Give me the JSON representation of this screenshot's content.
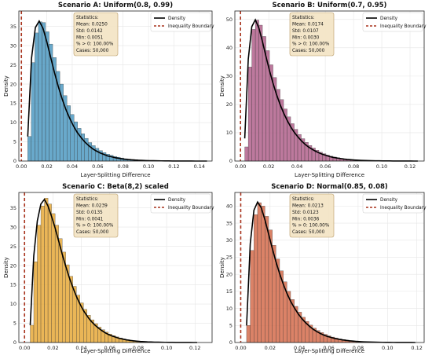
{
  "chart_data": [
    {
      "type": "bar",
      "title": "Scenario A: Uniform(0.8, 0.99)",
      "xlabel": "Layer-Splitting Difference",
      "ylabel": "Density",
      "xlim": [
        -0.002,
        0.15
      ],
      "ylim": [
        0,
        39
      ],
      "xticks": [
        0.0,
        0.02,
        0.04,
        0.06,
        0.08,
        0.1,
        0.12,
        0.14
      ],
      "xtick_labels": [
        "0.00",
        "0.02",
        "0.04",
        "0.06",
        "0.08",
        "0.10",
        "0.12",
        "0.14"
      ],
      "yticks": [
        0,
        5,
        10,
        15,
        20,
        25,
        30,
        35
      ],
      "ytick_labels": [
        "0",
        "5",
        "10",
        "15",
        "20",
        "25",
        "30",
        "35"
      ],
      "bin_width": 0.0028,
      "bins_start": 0.005,
      "density": [
        6.4,
        25.6,
        33.3,
        36.2,
        36.0,
        33.6,
        30.4,
        26.9,
        23.3,
        20.0,
        17.0,
        14.4,
        12.1,
        10.2,
        8.5,
        7.1,
        5.9,
        4.8,
        4.0,
        3.3,
        2.7,
        2.2,
        1.8,
        1.5,
        1.2,
        1.0,
        0.8,
        0.6,
        0.5,
        0.4,
        0.35,
        0.28,
        0.22,
        0.18,
        0.14,
        0.11,
        0.09,
        0.07,
        0.05,
        0.04,
        0.03,
        0.02,
        0.02,
        0.01,
        0.01,
        0.01,
        0.01,
        0.0,
        0.0,
        0.01
      ],
      "kde_x": [
        0.005,
        0.008,
        0.011,
        0.014,
        0.017,
        0.02,
        0.023,
        0.026,
        0.029,
        0.032,
        0.035,
        0.038,
        0.041,
        0.044,
        0.047,
        0.05,
        0.053,
        0.056,
        0.059,
        0.062,
        0.065,
        0.068,
        0.071,
        0.074,
        0.077,
        0.08,
        0.083,
        0.086,
        0.089,
        0.092,
        0.095,
        0.098,
        0.101,
        0.104,
        0.107,
        0.11,
        0.113,
        0.116,
        0.119,
        0.122,
        0.125,
        0.128,
        0.131,
        0.134,
        0.137,
        0.14,
        0.143,
        0.146
      ],
      "kde_y": [
        6.4,
        26.8,
        34.7,
        36.4,
        34.5,
        31.0,
        27.0,
        23.0,
        19.4,
        16.2,
        13.4,
        11.1,
        9.1,
        7.4,
        6.1,
        4.9,
        4.0,
        3.2,
        2.6,
        2.1,
        1.7,
        1.3,
        1.1,
        0.85,
        0.67,
        0.53,
        0.42,
        0.33,
        0.26,
        0.2,
        0.16,
        0.12,
        0.1,
        0.08,
        0.06,
        0.05,
        0.04,
        0.03,
        0.02,
        0.02,
        0.01,
        0.01,
        0.01,
        0.01,
        0.0,
        0.0,
        0.0,
        0.0
      ],
      "boundary_x": 0.0,
      "bar_color": "#4f9ac2",
      "legend": [
        "Density",
        "Inequality Boundary"
      ],
      "legend_position": "top-right",
      "stats_box": {
        "title": "Statistics:",
        "lines": [
          "Mean: 0.0250",
          "Std: 0.0142",
          "Min: 0.0051",
          "% > 0: 100.00%",
          "Cases: 50,000"
        ]
      }
    },
    {
      "type": "bar",
      "title": "Scenario B: Uniform(0.7, 0.95)",
      "xlabel": "Layer-Splitting Difference",
      "ylabel": "Density",
      "xlim": [
        -0.004,
        0.13
      ],
      "ylim": [
        0,
        53
      ],
      "xticks": [
        0.0,
        0.02,
        0.04,
        0.06,
        0.08,
        0.1,
        0.12
      ],
      "xtick_labels": [
        "0.00",
        "0.02",
        "0.04",
        "0.06",
        "0.08",
        "0.10",
        "0.12"
      ],
      "yticks": [
        0,
        10,
        20,
        30,
        40,
        50
      ],
      "ytick_labels": [
        "0",
        "10",
        "20",
        "30",
        "40",
        "50"
      ],
      "bin_width": 0.0025,
      "bins_start": 0.003,
      "density": [
        5.0,
        33.2,
        46.5,
        49.8,
        48.0,
        44.0,
        39.0,
        34.0,
        29.5,
        25.3,
        21.7,
        18.4,
        15.6,
        13.2,
        11.2,
        9.4,
        7.9,
        6.6,
        5.5,
        4.6,
        3.8,
        3.1,
        2.6,
        2.1,
        1.7,
        1.4,
        1.15,
        0.95,
        0.78,
        0.62,
        0.5,
        0.4,
        0.32,
        0.26,
        0.2,
        0.16,
        0.12,
        0.1,
        0.08,
        0.06,
        0.05,
        0.04,
        0.03,
        0.02,
        0.02,
        0.01,
        0.01,
        0.01,
        0.0,
        0.0
      ],
      "kde_x": [
        0.003,
        0.0055,
        0.008,
        0.0105,
        0.013,
        0.0155,
        0.018,
        0.0205,
        0.023,
        0.0255,
        0.028,
        0.0305,
        0.033,
        0.0355,
        0.038,
        0.0405,
        0.043,
        0.0455,
        0.048,
        0.0505,
        0.053,
        0.0555,
        0.058,
        0.0605,
        0.063,
        0.0655,
        0.068,
        0.0705,
        0.073,
        0.0755,
        0.078,
        0.0805,
        0.083,
        0.0855,
        0.088,
        0.0905,
        0.093,
        0.0955,
        0.098,
        0.1005,
        0.103,
        0.1055,
        0.108,
        0.1105,
        0.113,
        0.1155,
        0.118,
        0.1205,
        0.123,
        0.1255
      ],
      "kde_y": [
        8.0,
        36.0,
        47.5,
        49.9,
        47.0,
        42.3,
        37.0,
        32.0,
        27.5,
        23.5,
        20.0,
        17.0,
        14.4,
        12.1,
        10.2,
        8.6,
        7.2,
        6.0,
        5.0,
        4.2,
        3.5,
        2.9,
        2.4,
        2.0,
        1.6,
        1.3,
        1.1,
        0.9,
        0.72,
        0.58,
        0.47,
        0.38,
        0.3,
        0.24,
        0.19,
        0.15,
        0.12,
        0.1,
        0.08,
        0.06,
        0.05,
        0.04,
        0.03,
        0.02,
        0.02,
        0.01,
        0.01,
        0.01,
        0.0,
        0.0
      ],
      "boundary_x": 0.0,
      "bar_color": "#b2618c",
      "legend": [
        "Density",
        "Inequality Boundary"
      ],
      "legend_position": "top-right",
      "stats_box": {
        "title": "Statistics:",
        "lines": [
          "Mean: 0.0174",
          "Std: 0.0107",
          "Min: 0.0030",
          "% > 0: 100.00%",
          "Cases: 50,000"
        ]
      }
    },
    {
      "type": "bar",
      "title": "Scenario C: Beta(8,2) scaled",
      "xlabel": "Layer-Splitting Difference",
      "ylabel": "Density",
      "xlim": [
        -0.004,
        0.132
      ],
      "ylim": [
        0,
        39
      ],
      "xticks": [
        0.0,
        0.02,
        0.04,
        0.06,
        0.08,
        0.1,
        0.12
      ],
      "xtick_labels": [
        "0.00",
        "0.02",
        "0.04",
        "0.06",
        "0.08",
        "0.10",
        "0.12"
      ],
      "yticks": [
        0,
        5,
        10,
        15,
        20,
        25,
        30,
        35
      ],
      "ytick_labels": [
        "0",
        "5",
        "10",
        "15",
        "20",
        "25",
        "30",
        "35"
      ],
      "bin_width": 0.0025,
      "bins_start": 0.004,
      "density": [
        4.5,
        21.0,
        30.5,
        35.5,
        37.5,
        36.0,
        33.5,
        30.5,
        27.0,
        23.5,
        20.2,
        17.2,
        14.6,
        12.3,
        10.3,
        8.6,
        7.1,
        5.9,
        4.9,
        4.0,
        3.3,
        2.7,
        2.2,
        1.8,
        1.45,
        1.15,
        0.92,
        0.73,
        0.58,
        0.46,
        0.36,
        0.28,
        0.22,
        0.17,
        0.13,
        0.1,
        0.08,
        0.06,
        0.05,
        0.04,
        0.03,
        0.02,
        0.02,
        0.01,
        0.01,
        0.01,
        0.0,
        0.0
      ],
      "kde_x": [
        0.004,
        0.0065,
        0.009,
        0.0115,
        0.014,
        0.0165,
        0.019,
        0.0215,
        0.024,
        0.0265,
        0.029,
        0.0315,
        0.034,
        0.0365,
        0.039,
        0.0415,
        0.044,
        0.0465,
        0.049,
        0.0515,
        0.054,
        0.0565,
        0.059,
        0.0615,
        0.064,
        0.0665,
        0.069,
        0.0715,
        0.074,
        0.0765,
        0.079,
        0.0815,
        0.084,
        0.0865,
        0.089,
        0.0915,
        0.094,
        0.0965,
        0.099,
        0.1015,
        0.104,
        0.1065,
        0.109,
        0.1115,
        0.114,
        0.1165,
        0.119,
        0.1215
      ],
      "kde_y": [
        4.5,
        22.5,
        31.6,
        36.0,
        37.2,
        35.5,
        32.8,
        29.8,
        26.4,
        23.0,
        19.8,
        16.9,
        14.3,
        12.0,
        10.0,
        8.3,
        6.9,
        5.7,
        4.7,
        3.9,
        3.2,
        2.6,
        2.1,
        1.7,
        1.4,
        1.1,
        0.9,
        0.7,
        0.56,
        0.44,
        0.35,
        0.27,
        0.21,
        0.16,
        0.13,
        0.1,
        0.08,
        0.06,
        0.05,
        0.04,
        0.03,
        0.02,
        0.02,
        0.01,
        0.01,
        0.01,
        0.0,
        0.0
      ],
      "boundary_x": 0.0,
      "bar_color": "#e6a93a",
      "legend": [
        "Density",
        "Inequality Boundary"
      ],
      "legend_position": "top-right",
      "stats_box": {
        "title": "Statistics:",
        "lines": [
          "Mean: 0.0239",
          "Std: 0.0135",
          "Min: 0.0041",
          "% > 0: 100.00%",
          "Cases: 50,000"
        ]
      }
    },
    {
      "type": "bar",
      "title": "Scenario D: Normal(0.85, 0.08)",
      "xlabel": "Layer-Splitting Difference",
      "ylabel": "Density",
      "xlim": [
        -0.004,
        0.125
      ],
      "ylim": [
        0,
        44
      ],
      "xticks": [
        0.0,
        0.02,
        0.04,
        0.06,
        0.08,
        0.1,
        0.12
      ],
      "xtick_labels": [
        "0.00",
        "0.02",
        "0.04",
        "0.06",
        "0.08",
        "0.10",
        "0.12"
      ],
      "yticks": [
        0,
        5,
        10,
        15,
        20,
        25,
        30,
        35,
        40
      ],
      "ytick_labels": [
        "0",
        "5",
        "10",
        "15",
        "20",
        "25",
        "30",
        "35",
        "40"
      ],
      "bin_width": 0.0025,
      "bins_start": 0.004,
      "density": [
        5.0,
        27.0,
        37.5,
        41.0,
        40.0,
        37.0,
        33.0,
        28.5,
        24.5,
        21.0,
        17.8,
        15.0,
        12.6,
        10.6,
        8.9,
        7.4,
        6.2,
        5.1,
        4.2,
        3.5,
        2.9,
        2.4,
        1.95,
        1.6,
        1.3,
        1.05,
        0.85,
        0.68,
        0.54,
        0.43,
        0.34,
        0.27,
        0.21,
        0.17,
        0.13,
        0.1,
        0.08,
        0.06,
        0.05,
        0.04,
        0.03,
        0.02,
        0.02,
        0.01,
        0.01,
        0.01,
        0.0
      ],
      "kde_x": [
        0.004,
        0.0065,
        0.009,
        0.0115,
        0.014,
        0.0165,
        0.019,
        0.0215,
        0.024,
        0.0265,
        0.029,
        0.0315,
        0.034,
        0.0365,
        0.039,
        0.0415,
        0.044,
        0.0465,
        0.049,
        0.0515,
        0.054,
        0.0565,
        0.059,
        0.0615,
        0.064,
        0.0665,
        0.069,
        0.0715,
        0.074,
        0.0765,
        0.079,
        0.0815,
        0.084,
        0.0865,
        0.089,
        0.0915,
        0.094,
        0.0965,
        0.099,
        0.1015,
        0.104,
        0.1065,
        0.109,
        0.1115,
        0.114,
        0.1165,
        0.119
      ],
      "kde_y": [
        5.0,
        29.0,
        38.8,
        41.2,
        39.5,
        36.0,
        31.8,
        27.6,
        23.7,
        20.2,
        17.1,
        14.4,
        12.1,
        10.2,
        8.5,
        7.1,
        5.9,
        4.9,
        4.0,
        3.3,
        2.7,
        2.2,
        1.8,
        1.5,
        1.2,
        0.98,
        0.8,
        0.64,
        0.51,
        0.41,
        0.32,
        0.26,
        0.2,
        0.16,
        0.12,
        0.1,
        0.08,
        0.06,
        0.05,
        0.04,
        0.03,
        0.02,
        0.02,
        0.01,
        0.01,
        0.01,
        0.0
      ],
      "boundary_x": 0.0,
      "bar_color": "#d56c4c",
      "legend": [
        "Density",
        "Inequality Boundary"
      ],
      "legend_position": "top-right",
      "stats_box": {
        "title": "Statistics:",
        "lines": [
          "Mean: 0.0213",
          "Std: 0.0123",
          "Min: 0.0036",
          "% > 0: 100.00%",
          "Cases: 50,000"
        ]
      }
    }
  ],
  "colors": {
    "kde_line": "#000000",
    "boundary_line": "#a8321c",
    "grid": "#e6e6e6",
    "stats_box_fill": "#f3e4c4",
    "stats_box_stroke": "#b89a66"
  }
}
